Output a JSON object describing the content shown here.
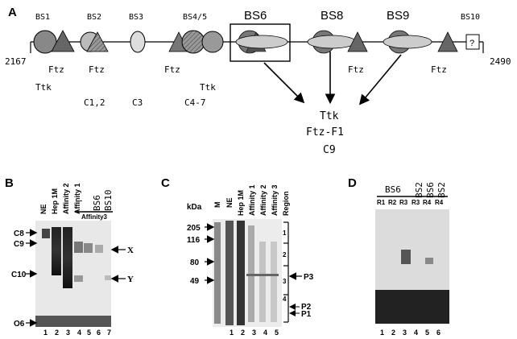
{
  "panelA": {
    "label": "A",
    "sites": [
      "BS1",
      "BS2",
      "BS3",
      "BS4/5",
      "BS6",
      "BS8",
      "BS9",
      "BS10"
    ],
    "unknown_box": "?",
    "coord_start": "2167",
    "coord_end": "2490",
    "factors_under": [
      "Ftz",
      "Ftz",
      "Ftz",
      "Ftz",
      "Ftz"
    ],
    "ttk_a": "Ttk",
    "ttk_b": "Ttk",
    "c_labels": [
      "C1,2",
      "C3",
      "C4-7"
    ],
    "binding_proteins": [
      "Ttk",
      "Ftz-F1",
      "C9"
    ]
  },
  "panelB": {
    "label": "B",
    "lanes": [
      "NE",
      "Hep 1M",
      "Affinity 2",
      "Affinity 1",
      "-",
      "BS6",
      "BS10"
    ],
    "affinity3_label": "Affinity3",
    "markers": [
      "C8",
      "C9",
      "C10",
      "O6"
    ],
    "bands": [
      "X",
      "Y"
    ],
    "lane_numbers": [
      "1",
      "2",
      "3",
      "4",
      "5",
      "6",
      "7"
    ]
  },
  "panelC": {
    "label": "C",
    "unit": "kDa",
    "mw": [
      "205",
      "116",
      "80",
      "49"
    ],
    "lanes": [
      "M",
      "NE",
      "Hep 1M",
      "Affinity 1",
      "Affinity 2",
      "Affinity 3",
      "Region"
    ],
    "regions": [
      "1",
      "2",
      "3",
      "4"
    ],
    "proteins": [
      "P3",
      "P2",
      "P1"
    ],
    "lane_numbers": [
      "1",
      "2",
      "3",
      "4",
      "5"
    ]
  },
  "panelD": {
    "label": "D",
    "headers": [
      "BS6",
      "BS2",
      "BS6",
      "BS2"
    ],
    "sub": [
      "R1",
      "R2",
      "R3",
      "R3",
      "R4",
      "R4"
    ],
    "lane_numbers": [
      "1",
      "2",
      "3",
      "4",
      "5",
      "6"
    ]
  }
}
